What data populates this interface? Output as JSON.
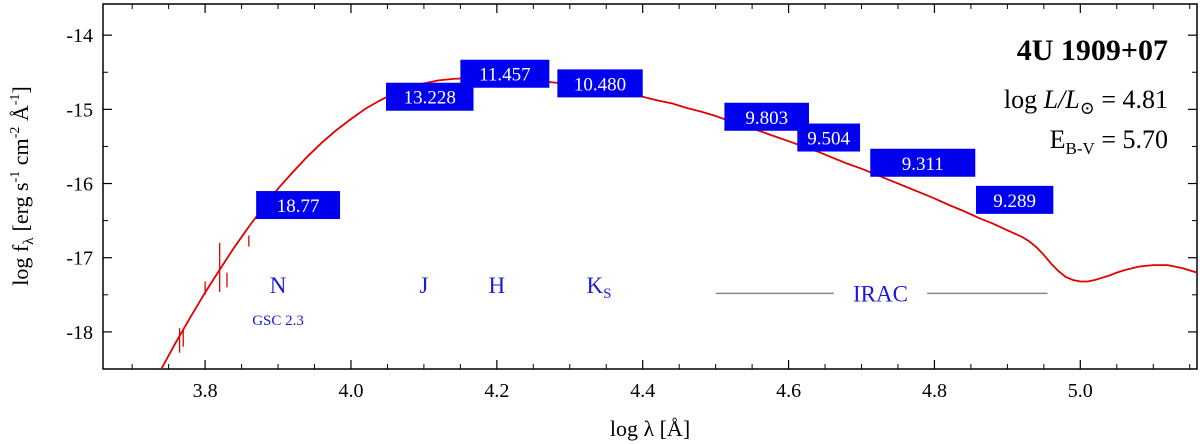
{
  "chart_data": {
    "type": "line",
    "title": "4U 1909+07",
    "xlabel": {
      "prefix": "log λ [Å]"
    },
    "ylabel": {
      "prefix": "log f",
      "sub": "λ",
      "units": "[erg s",
      "exp1": "-1",
      "mid1": " cm",
      "exp2": "-2",
      "mid2": " Å",
      "exp3": "-1",
      "end": "]"
    },
    "xlim": [
      3.66,
      5.16
    ],
    "ylim": [
      -18.5,
      -13.58
    ],
    "grid": false,
    "x_ticks": [
      {
        "value": 3.8,
        "label": "3.8"
      },
      {
        "value": 4.0,
        "label": "4.0"
      },
      {
        "value": 4.2,
        "label": "4.2"
      },
      {
        "value": 4.4,
        "label": "4.4"
      },
      {
        "value": 4.6,
        "label": "4.6"
      },
      {
        "value": 4.8,
        "label": "4.8"
      },
      {
        "value": 5.0,
        "label": "5.0"
      }
    ],
    "y_ticks": [
      {
        "value": -14,
        "label": "-14"
      },
      {
        "value": -15,
        "label": "-15"
      },
      {
        "value": -16,
        "label": "-16"
      },
      {
        "value": -17,
        "label": "-17"
      },
      {
        "value": -18,
        "label": "-18"
      }
    ],
    "model_curve": {
      "color": "#e00000",
      "x": [
        3.74,
        3.76,
        3.78,
        3.8,
        3.82,
        3.84,
        3.86,
        3.88,
        3.9,
        3.92,
        3.94,
        3.96,
        3.98,
        4.0,
        4.02,
        4.04,
        4.06,
        4.08,
        4.1,
        4.12,
        4.14,
        4.16,
        4.18,
        4.2,
        4.22,
        4.24,
        4.26,
        4.28,
        4.3,
        4.32,
        4.34,
        4.36,
        4.38,
        4.4,
        4.42,
        4.44,
        4.46,
        4.48,
        4.5,
        4.52,
        4.54,
        4.56,
        4.58,
        4.6,
        4.62,
        4.64,
        4.66,
        4.68,
        4.7,
        4.72,
        4.74,
        4.76,
        4.78,
        4.8,
        4.82,
        4.84,
        4.86,
        4.88,
        4.9,
        4.92,
        4.93,
        4.94,
        4.95,
        4.96,
        4.97,
        4.98,
        4.99,
        5.0,
        5.01,
        5.02,
        5.03,
        5.04,
        5.05,
        5.06,
        5.08,
        5.1,
        5.12,
        5.14,
        5.16
      ],
      "y": [
        -18.5,
        -18.14,
        -17.8,
        -17.47,
        -17.16,
        -16.86,
        -16.58,
        -16.32,
        -16.07,
        -15.85,
        -15.64,
        -15.45,
        -15.28,
        -15.13,
        -14.99,
        -14.88,
        -14.78,
        -14.71,
        -14.65,
        -14.61,
        -14.59,
        -14.58,
        -14.58,
        -14.58,
        -14.59,
        -14.6,
        -14.62,
        -14.64,
        -14.66,
        -14.69,
        -14.72,
        -14.76,
        -14.79,
        -14.83,
        -14.88,
        -14.92,
        -14.98,
        -15.03,
        -15.09,
        -15.16,
        -15.22,
        -15.29,
        -15.36,
        -15.43,
        -15.5,
        -15.57,
        -15.65,
        -15.73,
        -15.8,
        -15.88,
        -15.96,
        -16.04,
        -16.12,
        -16.2,
        -16.29,
        -16.37,
        -16.46,
        -16.54,
        -16.63,
        -16.72,
        -16.78,
        -16.86,
        -16.96,
        -17.08,
        -17.18,
        -17.26,
        -17.3,
        -17.32,
        -17.32,
        -17.3,
        -17.27,
        -17.24,
        -17.2,
        -17.17,
        -17.12,
        -17.1,
        -17.1,
        -17.14,
        -17.2
      ]
    },
    "spectral_lines": [
      {
        "x": 3.765,
        "y_top": -17.95,
        "y_bottom": -18.28
      },
      {
        "x": 3.77,
        "y_top": -17.98,
        "y_bottom": -18.2
      },
      {
        "x": 3.8,
        "y_top": -17.32,
        "y_bottom": -17.5
      },
      {
        "x": 3.82,
        "y_top": -16.8,
        "y_bottom": -17.46
      },
      {
        "x": 3.83,
        "y_top": -17.2,
        "y_bottom": -17.4
      },
      {
        "x": 3.86,
        "y_top": -16.7,
        "y_bottom": -16.85
      }
    ],
    "photometry": [
      {
        "label": "18.77",
        "x": 3.935,
        "y": -16.29,
        "box_x1": 3.87,
        "box_x2": 3.985
      },
      {
        "label": "13.228",
        "x": 4.11,
        "y": -14.83,
        "box_x1": 4.048,
        "box_x2": 4.168
      },
      {
        "label": "11.457",
        "x": 4.21,
        "y": -14.52,
        "box_x1": 4.15,
        "box_x2": 4.272
      },
      {
        "label": "10.480",
        "x": 4.34,
        "y": -14.65,
        "box_x1": 4.283,
        "box_x2": 4.4
      },
      {
        "label": "9.803",
        "x": 4.57,
        "y": -15.1,
        "box_x1": 4.512,
        "box_x2": 4.628
      },
      {
        "label": "9.504",
        "x": 4.655,
        "y": -15.38,
        "box_x1": 4.612,
        "box_x2": 4.698
      },
      {
        "label": "9.311",
        "x": 4.78,
        "y": -15.72,
        "box_x1": 4.712,
        "box_x2": 4.856
      },
      {
        "label": "9.289",
        "x": 4.91,
        "y": -16.22,
        "box_x1": 4.857,
        "box_x2": 4.963
      }
    ],
    "box_color": "#0000ee",
    "band_color": "#1a1ad6",
    "band_labels": [
      {
        "label": "N",
        "sub": "",
        "x": 3.9,
        "y": -17.37,
        "size": "large"
      },
      {
        "label": "GSC 2.3",
        "sub": "",
        "x": 3.9,
        "y": -17.8,
        "size": "small"
      },
      {
        "label": "J",
        "sub": "",
        "x": 4.1,
        "y": -17.37,
        "size": "large"
      },
      {
        "label": "H",
        "sub": "",
        "x": 4.2,
        "y": -17.37,
        "size": "large"
      },
      {
        "label": "K",
        "sub": "S",
        "x": 4.34,
        "y": -17.37,
        "size": "large"
      },
      {
        "label": "IRAC",
        "sub": "",
        "x": 4.726,
        "y": -17.48,
        "size": "large"
      }
    ],
    "irac_bracket": {
      "x1": 4.5,
      "x2": 4.955,
      "y": -17.48,
      "gap_x1": 4.662,
      "gap_x2": 4.79,
      "color": "#888888"
    },
    "annotations": {
      "log_l": {
        "prefix": "log ",
        "L": "L",
        "over": "/L",
        "sym": "⊙",
        "eq": " =  4.81"
      },
      "ebv": {
        "E": "E",
        "sub": "B-V",
        "eq": " =  5.70"
      }
    }
  }
}
